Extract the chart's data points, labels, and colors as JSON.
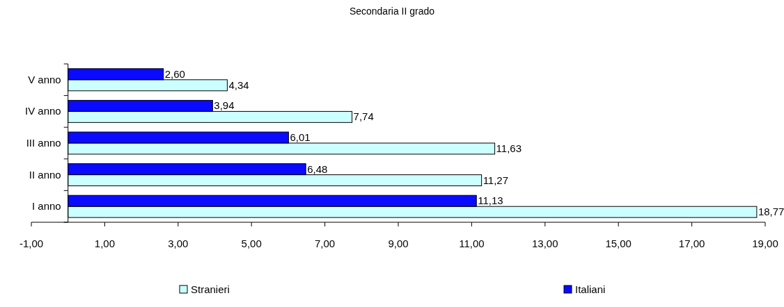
{
  "chart_data": {
    "type": "bar",
    "orientation": "horizontal",
    "title": "Secondaria II grado",
    "categories": [
      "V anno",
      "IV anno",
      "III anno",
      "II anno",
      "I anno"
    ],
    "series": [
      {
        "name": "Stranieri",
        "color": "#ccffff",
        "values": [
          4.34,
          7.74,
          11.63,
          11.27,
          18.77
        ],
        "value_labels": [
          "4,34",
          "7,74",
          "11,63",
          "11,27",
          "18,77"
        ]
      },
      {
        "name": "Italiani",
        "color": "#0a0aff",
        "values": [
          2.6,
          3.94,
          6.01,
          6.48,
          11.13
        ],
        "value_labels": [
          "2,60",
          "3,94",
          "6,01",
          "6,48",
          "11,13"
        ]
      }
    ],
    "xlim": [
      -1,
      19
    ],
    "xticks": [
      {
        "value": -1,
        "label": "-1,00"
      },
      {
        "value": 1,
        "label": "1,00"
      },
      {
        "value": 3,
        "label": "3,00"
      },
      {
        "value": 5,
        "label": "5,00"
      },
      {
        "value": 7,
        "label": "7,00"
      },
      {
        "value": 9,
        "label": "9,00"
      },
      {
        "value": 11,
        "label": "11,00"
      },
      {
        "value": 13,
        "label": "13,00"
      },
      {
        "value": 15,
        "label": "15,00"
      },
      {
        "value": 17,
        "label": "17,00"
      },
      {
        "value": 19,
        "label": "19,00"
      }
    ],
    "legend": "bottom",
    "grid": false
  }
}
